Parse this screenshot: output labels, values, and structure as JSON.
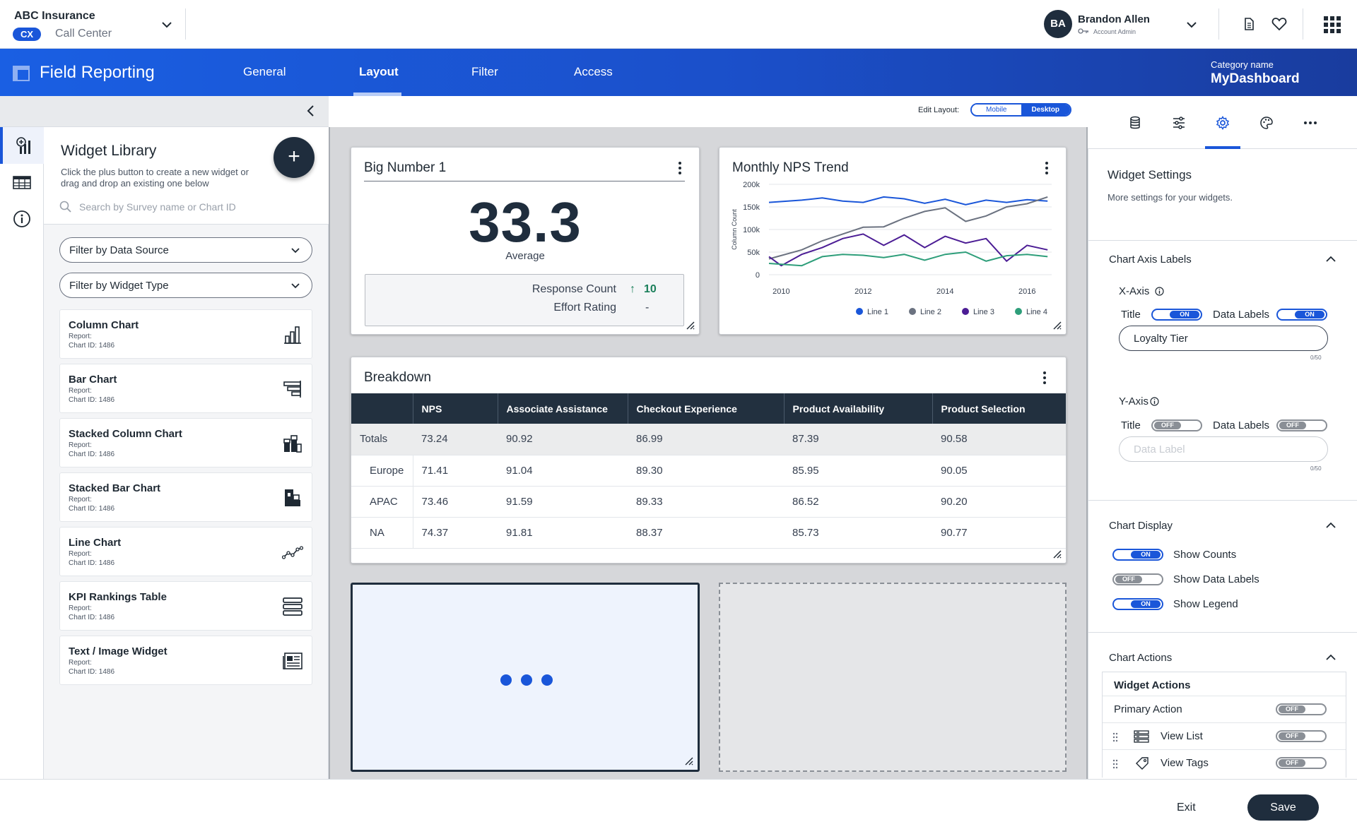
{
  "header": {
    "org_name": "ABC Insurance",
    "badge": "CX",
    "org_sub": "Call Center",
    "avatar_initials": "BA",
    "user_name": "Brandon Allen",
    "user_role": "Account Admin"
  },
  "nav": {
    "title": "Field Reporting",
    "tabs": [
      "General",
      "Layout",
      "Filter",
      "Access"
    ],
    "active_tab": "Layout",
    "category_label": "Category name",
    "category_value": "MyDashboard"
  },
  "library": {
    "title": "Widget Library",
    "description": "Click the plus button to create a new widget or drag and drop an existing one below",
    "add_label": "+",
    "search_placeholder": "Search by Survey name or Chart ID",
    "filter_data_source": "Filter by Data Source",
    "filter_widget_type": "Filter by Widget Type",
    "items": [
      {
        "title": "Column Chart",
        "report": "Report:",
        "chart_id": "Chart ID: 1486",
        "icon": "column-chart-icon"
      },
      {
        "title": "Bar Chart",
        "report": "Report:",
        "chart_id": "Chart ID: 1486",
        "icon": "bar-chart-icon"
      },
      {
        "title": "Stacked Column Chart",
        "report": "Report:",
        "chart_id": "Chart ID: 1486",
        "icon": "stacked-column-icon"
      },
      {
        "title": "Stacked Bar Chart",
        "report": "Report:",
        "chart_id": "Chart ID: 1486",
        "icon": "stacked-bar-icon"
      },
      {
        "title": "Line Chart",
        "report": "Report:",
        "chart_id": "Chart ID: 1486",
        "icon": "line-chart-icon"
      },
      {
        "title": "KPI Rankings Table",
        "report": "Report:",
        "chart_id": "Chart ID: 1486",
        "icon": "kpi-table-icon"
      },
      {
        "title": "Text / Image Widget",
        "report": "Report:",
        "chart_id": "Chart ID: 1486",
        "icon": "text-image-icon"
      }
    ]
  },
  "canvas": {
    "edit_layout_label": "Edit Layout:",
    "mode_mobile": "Mobile",
    "mode_desktop": "Desktop",
    "selected_mode": "Desktop",
    "big_number": {
      "title": "Big Number 1",
      "value": "33.3",
      "subtitle": "Average",
      "response_count_label": "Response Count",
      "response_count_arrow": "↑",
      "response_count_value": "10",
      "effort_label": "Effort Rating",
      "effort_value": "-"
    },
    "nps_trend": {
      "title": "Monthly NPS Trend"
    },
    "breakdown": {
      "title": "Breakdown",
      "columns": [
        "",
        "NPS",
        "Associate Assistance",
        "Checkout Experience",
        "Product Availability",
        "Product Selection"
      ],
      "rows": [
        [
          "Totals",
          "73.24",
          "90.92",
          "86.99",
          "87.39",
          "90.58"
        ],
        [
          "Europe",
          "71.41",
          "91.04",
          "89.30",
          "85.95",
          "90.05"
        ],
        [
          "APAC",
          "73.46",
          "91.59",
          "89.33",
          "86.52",
          "90.20"
        ],
        [
          "NA",
          "74.37",
          "91.81",
          "88.37",
          "85.73",
          "90.77"
        ]
      ]
    }
  },
  "chart_data": {
    "type": "line",
    "title": "Monthly NPS Trend",
    "xlabel": "",
    "ylabel": "Column Count",
    "x_ticks": [
      "2010",
      "2012",
      "2014",
      "2016"
    ],
    "y_ticks": [
      "0",
      "50k",
      "100k",
      "150k",
      "200k"
    ],
    "ylim": [
      0,
      200000
    ],
    "xlim": [
      2009.7,
      2016.6
    ],
    "legend_position": "bottom",
    "grid": true,
    "series": [
      {
        "name": "Line 1",
        "color": "#1a56d9",
        "x": [
          2009.7,
          2010.5,
          2011,
          2011.5,
          2012,
          2012.5,
          2013,
          2013.5,
          2014,
          2014.5,
          2015,
          2015.5,
          2016,
          2016.5
        ],
        "y": [
          160000,
          165000,
          170000,
          163000,
          160000,
          172000,
          168000,
          158000,
          167000,
          155000,
          165000,
          160000,
          166000,
          163000
        ]
      },
      {
        "name": "Line 2",
        "color": "#6b7280",
        "x": [
          2009.7,
          2010.5,
          2011,
          2011.5,
          2012,
          2012.5,
          2013,
          2013.5,
          2014,
          2014.5,
          2015,
          2015.5,
          2016,
          2016.5
        ],
        "y": [
          35000,
          55000,
          75000,
          90000,
          105000,
          106000,
          125000,
          140000,
          148000,
          118000,
          130000,
          150000,
          157000,
          172000
        ]
      },
      {
        "name": "Line 3",
        "color": "#4c1d95",
        "x": [
          2009.7,
          2010,
          2010.5,
          2011,
          2011.5,
          2012,
          2012.5,
          2013,
          2013.5,
          2014,
          2014.5,
          2015,
          2015.5,
          2016,
          2016.5
        ],
        "y": [
          40000,
          20000,
          45000,
          60000,
          80000,
          90000,
          65000,
          88000,
          60000,
          85000,
          70000,
          80000,
          30000,
          65000,
          55000
        ]
      },
      {
        "name": "Line 4",
        "color": "#2e9e7a",
        "x": [
          2009.7,
          2010.5,
          2011,
          2011.5,
          2012,
          2012.5,
          2013,
          2013.5,
          2014,
          2014.5,
          2015,
          2015.5,
          2016,
          2016.5
        ],
        "y": [
          25000,
          20000,
          40000,
          45000,
          43000,
          38000,
          45000,
          32000,
          45000,
          50000,
          30000,
          42000,
          45000,
          40000
        ]
      }
    ]
  },
  "panel": {
    "tabs": [
      "database-icon",
      "sliders-icon",
      "gear-icon",
      "palette-icon",
      "more-icon"
    ],
    "active_tab": "gear-icon",
    "title": "Widget Settings",
    "description": "More settings for your widgets.",
    "axis_section": "Chart Axis Labels",
    "x_axis_label": "X-Axis",
    "y_axis_label": "Y-Axis",
    "title_label": "Title",
    "data_labels_label": "Data Labels",
    "on_text": "ON",
    "off_text": "OFF",
    "x_title_value": "Loyalty Tier",
    "x_counter": "0/50",
    "y_placeholder": "Data Label",
    "y_counter": "0/50",
    "display_section": "Chart Display",
    "show_counts": "Show Counts",
    "show_data_labels": "Show Data Labels",
    "show_legend": "Show Legend",
    "actions_section": "Chart Actions",
    "widget_actions_title": "Widget Actions",
    "primary_action": "Primary Action",
    "view_list": "View List",
    "view_tags": "View Tags"
  },
  "footer": {
    "exit": "Exit",
    "save": "Save"
  }
}
